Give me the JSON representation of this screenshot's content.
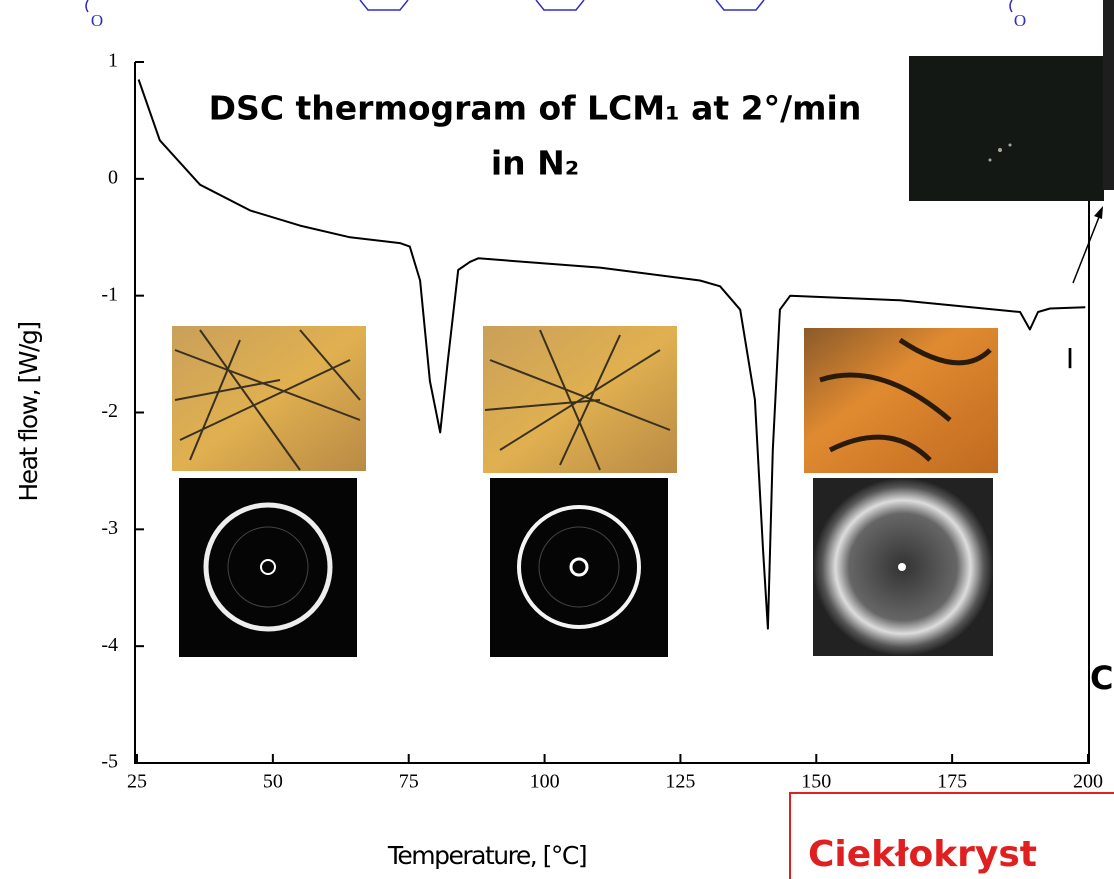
{
  "chart_data": {
    "type": "line",
    "title": [
      "DSC thermogram of LCM₁ at 2°/min",
      "in N₂"
    ],
    "x_label": "Temperature, [°C]",
    "y_label": "Heat flow, [W/g]",
    "x": [
      25.3,
      29.2,
      36.6,
      45.8,
      55,
      64.2,
      73.4,
      75.2,
      77.1,
      78.9,
      80.8,
      82.2,
      84.1,
      86.3,
      87.8,
      110.2,
      128.6,
      132.3,
      136,
      138.7,
      140.2,
      141.1,
      142,
      143.3,
      145.2,
      165.4,
      187.5,
      189.3,
      190.8,
      193,
      199.5
    ],
    "values": [
      0.85,
      0.33,
      -0.05,
      -0.27,
      -0.4,
      -0.5,
      -0.55,
      -0.58,
      -0.87,
      -1.73,
      -2.17,
      -1.56,
      -0.78,
      -0.71,
      -0.68,
      -0.76,
      -0.87,
      -0.92,
      -1.12,
      -1.89,
      -3.17,
      -3.85,
      -2.32,
      -1.12,
      -1.0,
      -1.04,
      -1.14,
      -1.29,
      -1.14,
      -1.11,
      -1.1
    ],
    "color": "#000000",
    "xlim": [
      25,
      200
    ],
    "xticks": [
      25,
      50,
      75,
      100,
      125,
      150,
      175,
      200
    ],
    "ylim": [
      -5,
      1
    ],
    "yticks": [
      -5,
      -4,
      -3,
      -2,
      -1,
      0,
      1
    ],
    "annotations": [
      "O",
      "O",
      "I",
      "C",
      "Ciekłokryst"
    ]
  }
}
